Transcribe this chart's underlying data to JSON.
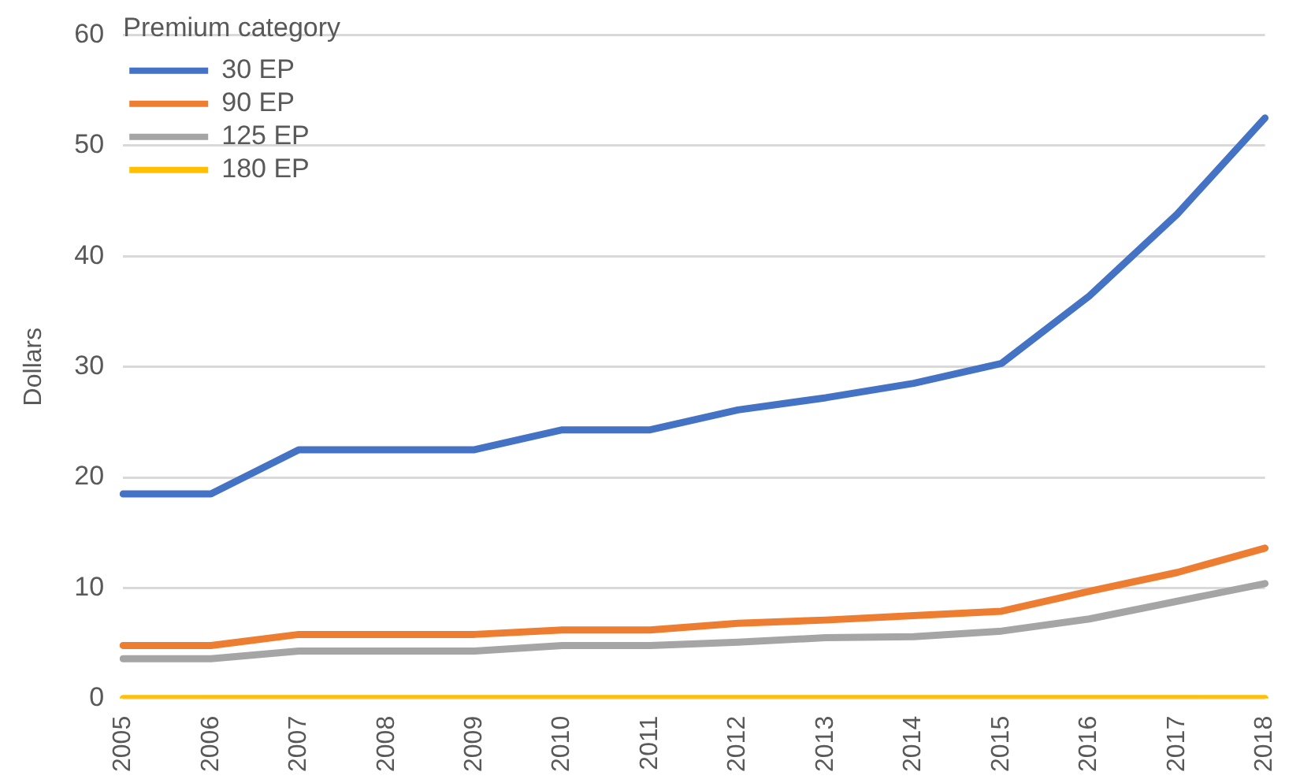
{
  "chart_data": {
    "type": "line",
    "ylabel": "Dollars",
    "legend_title": "Premium category",
    "legend": "top left",
    "grid": "y",
    "ylim": [
      0,
      60
    ],
    "yticks": [
      0,
      10,
      20,
      30,
      40,
      50,
      60
    ],
    "categories": [
      "2005",
      "2006",
      "2007",
      "2008",
      "2009",
      "2010",
      "2011",
      "2012",
      "2013",
      "2014",
      "2015",
      "2016",
      "2017",
      "2018"
    ],
    "series": [
      {
        "name": "30 EP",
        "color": "#4472c4",
        "values": [
          18.5,
          18.5,
          22.5,
          22.5,
          22.5,
          24.3,
          24.3,
          26.1,
          27.2,
          28.5,
          30.3,
          36.4,
          43.8,
          52.5
        ]
      },
      {
        "name": "90 EP",
        "color": "#ed7d31",
        "values": [
          4.8,
          4.8,
          5.8,
          5.8,
          5.8,
          6.2,
          6.2,
          6.8,
          7.1,
          7.5,
          7.9,
          9.7,
          11.4,
          13.6
        ]
      },
      {
        "name": "125 EP",
        "color": "#a5a5a5",
        "values": [
          3.6,
          3.6,
          4.3,
          4.3,
          4.3,
          4.8,
          4.8,
          5.1,
          5.5,
          5.6,
          6.1,
          7.2,
          8.8,
          10.4
        ]
      },
      {
        "name": "180 EP",
        "color": "#ffc000",
        "values": [
          0,
          0,
          0,
          0,
          0,
          0,
          0,
          0,
          0,
          0,
          0,
          0,
          0,
          0
        ]
      }
    ]
  }
}
